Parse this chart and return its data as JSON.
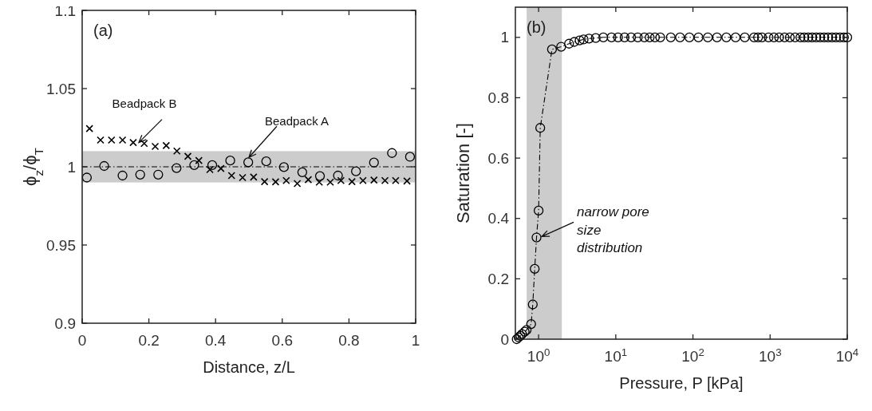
{
  "chart_data": [
    {
      "type": "scatter",
      "xlabel": "Distance, z/L",
      "ylabel": "ϕ$_{z}$/ϕ$_{T}$",
      "xlim": [
        0,
        1
      ],
      "ylim": [
        0.9,
        1.1
      ],
      "xticks": [
        0,
        0.2,
        0.4,
        0.6,
        0.8,
        1
      ],
      "yticks": [
        0.9,
        0.95,
        1,
        1.05,
        1.1
      ],
      "annotations": [
        "(a)",
        {
          "text": "Beadpack B",
          "x": 0.17,
          "y": 1.0155
        },
        {
          "text": "Beadpack A",
          "x": 0.5,
          "y": 1.006
        }
      ],
      "ref_lines": [
        {
          "axis": "y",
          "value": 1,
          "color": "#000000",
          "line_style": "dashed"
        }
      ],
      "bands": [
        {
          "axis": "y",
          "from": 0.99,
          "to": 1.01,
          "color": "#cccccc"
        }
      ],
      "series": [
        {
          "color": "#000000",
          "marker": "circle",
          "x": [
            0.014,
            0.066,
            0.121,
            0.174,
            0.228,
            0.283,
            0.336,
            0.39,
            0.444,
            0.498,
            0.552,
            0.605,
            0.66,
            0.713,
            0.767,
            0.821,
            0.875,
            0.929,
            0.983
          ],
          "values": [
            0.9931,
            1.0005,
            0.9944,
            0.995,
            0.995,
            0.9992,
            1.0011,
            1.0011,
            1.004,
            1.0029,
            1.0035,
            0.9998,
            0.9965,
            0.9941,
            0.9944,
            0.9971,
            1.0027,
            1.0088,
            1.0064
          ]
        },
        {
          "color": "#000000",
          "marker": "cross",
          "x": [
            0.022,
            0.055,
            0.088,
            0.121,
            0.153,
            0.186,
            0.219,
            0.252,
            0.284,
            0.317,
            0.35,
            0.383,
            0.416,
            0.448,
            0.481,
            0.514,
            0.547,
            0.58,
            0.612,
            0.645,
            0.678,
            0.711,
            0.744,
            0.776,
            0.809,
            0.842,
            0.875,
            0.908,
            0.94,
            0.974
          ],
          "values": [
            1.0244,
            1.0171,
            1.0171,
            1.0171,
            1.0155,
            1.0149,
            1.013,
            1.0136,
            1.0101,
            1.0067,
            1.004,
            0.9982,
            0.9989,
            0.9944,
            0.9931,
            0.9934,
            0.9905,
            0.9904,
            0.9912,
            0.9893,
            0.9918,
            0.9902,
            0.9902,
            0.9912,
            0.9905,
            0.9912,
            0.9915,
            0.9912,
            0.9912,
            0.9909
          ]
        }
      ]
    },
    {
      "type": "line",
      "xlabel": "Pressure, P [kPa]",
      "ylabel": "Saturation [-]",
      "log": "x",
      "xlim": [
        0.5,
        10000
      ],
      "ylim": [
        0,
        1.1
      ],
      "xticks": [
        {
          "value": 1,
          "label": "10$^{0}$"
        },
        {
          "value": 10,
          "label": "10$^{1}$"
        },
        {
          "value": 100,
          "label": "10$^{2}$"
        },
        {
          "value": 1000,
          "label": "10$^{3}$"
        },
        {
          "value": 10000,
          "label": "10$^{4}$"
        }
      ],
      "yticks": [
        0,
        0.2,
        0.4,
        0.6,
        0.8,
        1
      ],
      "marker": "circle",
      "line_style": "dashed",
      "annotations": [
        "(b)",
        {
          "text": "narrow pore size distribution",
          "x": 1.1,
          "y": 0.34
        }
      ],
      "bands": [
        {
          "axis": "x",
          "from": 0.7,
          "to": 2,
          "color": "#cccccc"
        }
      ],
      "series": [
        {
          "color": "#000000",
          "x": [
            0.52,
            0.55,
            0.58,
            0.61,
            0.66,
            0.7,
            0.8,
            0.84,
            0.89,
            0.94,
            1.0,
            1.05,
            1.49,
            1.96,
            2.48,
            2.9,
            3.4,
            3.83,
            4.5,
            5.5,
            6.9,
            8.8,
            10.7,
            13,
            15.8,
            19.3,
            23.5,
            27.5,
            32.2,
            37.7,
            51.6,
            68,
            90,
            118,
            156,
            205,
            271,
            357,
            470,
            620,
            698,
            785,
            955,
            1120,
            1310,
            1540,
            1800,
            2110,
            2470,
            2770,
            3120,
            3510,
            3960,
            4450,
            5010,
            5640,
            6350,
            7140,
            8040,
            9050,
            10000
          ],
          "values": [
            0,
            0.006,
            0.011,
            0.017,
            0.025,
            0.031,
            0.05,
            0.115,
            0.233,
            0.337,
            0.426,
            0.7,
            0.96,
            0.969,
            0.979,
            0.985,
            0.99,
            0.993,
            0.996,
            0.998,
            1,
            1,
            1,
            1,
            1,
            1,
            1,
            1,
            1,
            1,
            1,
            1,
            1,
            1,
            1,
            1,
            1,
            1,
            1,
            1,
            1,
            1,
            1,
            1,
            1,
            1,
            1,
            1,
            1,
            1,
            1,
            1,
            1,
            1,
            1,
            1,
            1,
            1,
            1,
            1,
            1
          ]
        }
      ]
    }
  ]
}
